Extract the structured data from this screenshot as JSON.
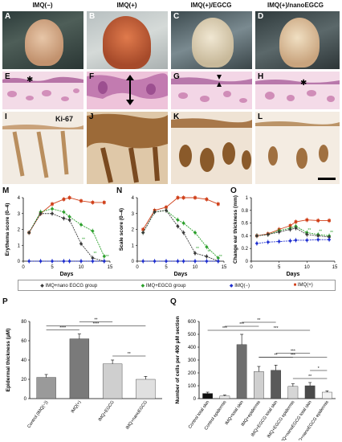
{
  "columns": [
    "IMQ(−)",
    "IMQ(+)",
    "IMQ(+)/EGCG",
    "IMQ(+)/nanoEGCG"
  ],
  "photo_letters": [
    "A",
    "B",
    "C",
    "D"
  ],
  "he_letters": [
    "E",
    "F",
    "G",
    "H"
  ],
  "ki_letters": [
    "I",
    "J",
    "K",
    "L"
  ],
  "ki_label": "Ki-67",
  "colors": {
    "nano": "#3a3a3a",
    "egcg": "#2ca02c",
    "neg": "#2030d0",
    "pos": "#d0401a",
    "he_pink": "#e9b6cf",
    "he_purple": "#8a4c9a",
    "ki_bg": "#efe6dc",
    "ki_brown": "#8a5a20"
  },
  "charts": {
    "M": {
      "letter": "M",
      "ylabel": "Erythema score (0–4)",
      "xlabel": "Days",
      "ylim": [
        0,
        4
      ],
      "yticks": [
        "0",
        "1",
        "2",
        "3",
        "4"
      ],
      "xlim": [
        0,
        15
      ],
      "xticks": [
        "0",
        "5",
        "10",
        "15"
      ]
    },
    "N": {
      "letter": "N",
      "ylabel": "Scale score (0–4)",
      "xlabel": "Days",
      "ylim": [
        0,
        4
      ],
      "yticks": [
        "0",
        "1",
        "2",
        "3",
        "4"
      ],
      "xlim": [
        0,
        15
      ],
      "xticks": [
        "0",
        "5",
        "10",
        "15"
      ]
    },
    "O": {
      "letter": "O",
      "ylabel": "Change ear thickness (mm)",
      "xlabel": "Days",
      "ylim": [
        0,
        1
      ],
      "yticks": [
        "0",
        "0.2",
        "0.4",
        "0.6",
        "0.8",
        "1"
      ],
      "xlim": [
        0,
        15
      ],
      "xticks": [
        "0",
        "5",
        "10",
        "15"
      ]
    },
    "P": {
      "letter": "P",
      "ylabel": "Epidermal thickness (μM)",
      "ylim": [
        0,
        80
      ],
      "yticks": [
        "0",
        "20",
        "40",
        "60",
        "80"
      ]
    },
    "Q": {
      "letter": "Q",
      "ylabel": "Number of cells per 400 μM section",
      "ylim": [
        0,
        600
      ],
      "yticks": [
        "0",
        "100",
        "200",
        "300",
        "400",
        "500",
        "600"
      ]
    }
  },
  "legend": [
    "IMQ+nano EGCG group",
    "IMQ+EGCG group",
    "IMQ(−)",
    "IMQ(+)"
  ],
  "chart_data": [
    {
      "type": "line",
      "letter": "M",
      "x": [
        1,
        3,
        5,
        7,
        8,
        10,
        12,
        14
      ],
      "series": [
        {
          "name": "IMQ(+)",
          "values": [
            1.8,
            3.0,
            3.6,
            3.9,
            4.0,
            3.8,
            3.7,
            3.7
          ]
        },
        {
          "name": "IMQ+EGCG group",
          "values": [
            1.8,
            3.1,
            3.3,
            3.1,
            2.8,
            2.3,
            1.9,
            0.3
          ]
        },
        {
          "name": "IMQ+nano EGCG group",
          "values": [
            1.8,
            3.0,
            3.0,
            2.7,
            2.6,
            1.1,
            0.2,
            0.0
          ]
        },
        {
          "name": "IMQ(−)",
          "values": [
            0,
            0,
            0,
            0,
            0,
            0,
            0,
            0
          ]
        }
      ],
      "annotations": [
        "**",
        "**",
        "***"
      ]
    },
    {
      "type": "line",
      "letter": "N",
      "x": [
        1,
        3,
        5,
        7,
        8,
        10,
        12,
        14
      ],
      "series": [
        {
          "name": "IMQ(+)",
          "values": [
            2.0,
            3.2,
            3.4,
            4.0,
            4.0,
            4.0,
            3.9,
            3.6
          ]
        },
        {
          "name": "IMQ+EGCG group",
          "values": [
            1.8,
            3.1,
            3.2,
            2.6,
            2.4,
            1.8,
            0.9,
            0.2
          ]
        },
        {
          "name": "IMQ+nano EGCG group",
          "values": [
            1.8,
            3.1,
            3.2,
            2.2,
            1.8,
            0.5,
            0.3,
            0.0
          ]
        },
        {
          "name": "IMQ(−)",
          "values": [
            0,
            0,
            0,
            0,
            0,
            0,
            0,
            0
          ]
        }
      ],
      "annotations": [
        "**",
        "**",
        "**"
      ]
    },
    {
      "type": "line",
      "letter": "O",
      "x": [
        1,
        3,
        5,
        7,
        8,
        10,
        12,
        14
      ],
      "series": [
        {
          "name": "IMQ(+)",
          "values": [
            0.4,
            0.43,
            0.5,
            0.56,
            0.62,
            0.65,
            0.64,
            0.64
          ]
        },
        {
          "name": "IMQ+EGCG group",
          "values": [
            0.4,
            0.42,
            0.48,
            0.52,
            0.55,
            0.45,
            0.42,
            0.4
          ]
        },
        {
          "name": "IMQ+nano EGCG group",
          "values": [
            0.4,
            0.42,
            0.46,
            0.5,
            0.52,
            0.42,
            0.4,
            0.38
          ]
        },
        {
          "name": "IMQ(−)",
          "values": [
            0.28,
            0.3,
            0.31,
            0.32,
            0.33,
            0.33,
            0.34,
            0.34
          ]
        }
      ],
      "annotations": [
        "**",
        "**",
        "**"
      ]
    },
    {
      "type": "bar",
      "letter": "P",
      "categories": [
        "Control (IMQ(−))",
        "IMQ(+)",
        "IMQ+EGCG",
        "IMQ+nanoEGCG"
      ],
      "values": [
        22,
        62,
        36,
        20
      ],
      "errors": [
        3,
        5,
        4,
        3
      ],
      "significance": [
        {
          "from": 0,
          "to": 1,
          "label": "****"
        },
        {
          "from": 0,
          "to": 3,
          "label": "****"
        },
        {
          "from": 1,
          "to": 2,
          "label": "**"
        },
        {
          "from": 2,
          "to": 3,
          "label": "**"
        }
      ]
    },
    {
      "type": "bar",
      "letter": "Q",
      "categories": [
        "Control total skin",
        "Control epidermis",
        "IMQ+total skin",
        "IMQ+epidermis",
        "IMQ+EGCG total skin",
        "IMQ+EGCG epidermis",
        "IMQ+nanoEGCG total skin",
        "IMQ+nanoEGCG epidermis"
      ],
      "values": [
        40,
        20,
        420,
        210,
        220,
        95,
        100,
        50
      ],
      "errors": [
        10,
        8,
        80,
        40,
        40,
        20,
        25,
        10
      ],
      "significance": [
        {
          "from": 0,
          "to": 2,
          "label": "***"
        },
        {
          "from": 1,
          "to": 3,
          "label": "***"
        },
        {
          "from": 2,
          "to": 4,
          "label": "**"
        },
        {
          "from": 2,
          "to": 6,
          "label": "***"
        },
        {
          "from": 3,
          "to": 5,
          "label": "**"
        },
        {
          "from": 4,
          "to": 6,
          "label": "***"
        },
        {
          "from": 5,
          "to": 7,
          "label": "**"
        },
        {
          "from": 3,
          "to": 7,
          "label": "***"
        },
        {
          "from": 6,
          "to": 7,
          "label": "*"
        }
      ]
    }
  ]
}
